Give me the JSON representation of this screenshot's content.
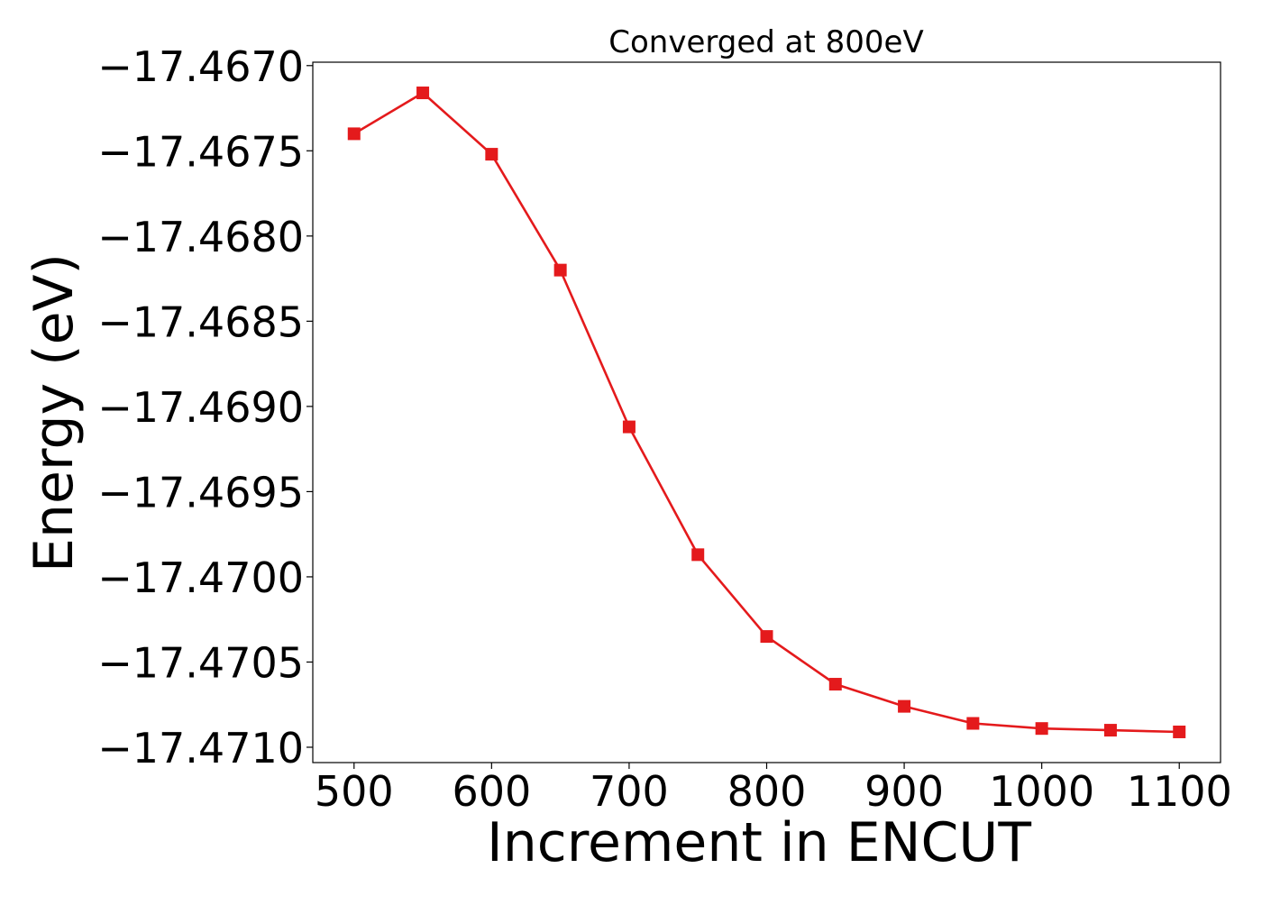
{
  "chart_data": {
    "type": "line",
    "title": "Converged at 800eV",
    "xlabel": "Increment in ENCUT",
    "ylabel": "Energy (eV)",
    "xlim": [
      470,
      1130
    ],
    "ylim": [
      -17.47109,
      -17.46698
    ],
    "xticks": [
      500,
      600,
      700,
      800,
      900,
      1000,
      1100
    ],
    "yticks": [
      -17.471,
      -17.4705,
      -17.47,
      -17.4695,
      -17.469,
      -17.4685,
      -17.468,
      -17.4675,
      -17.467
    ],
    "grid": false,
    "marker": "square",
    "color": "#e41a1c",
    "series": [
      {
        "x": [
          500,
          550,
          600,
          650,
          700,
          750,
          800,
          850,
          900,
          950,
          1000,
          1050,
          1100
        ],
        "y": [
          -17.4674,
          -17.46716,
          -17.46752,
          -17.4682,
          -17.46912,
          -17.46987,
          -17.47035,
          -17.47063,
          -17.47076,
          -17.47086,
          -17.47089,
          -17.4709,
          -17.47091
        ]
      }
    ]
  }
}
